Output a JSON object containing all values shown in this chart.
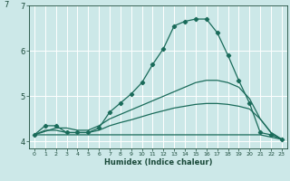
{
  "xlabel": "Humidex (Indice chaleur)",
  "bg_color": "#cce8e8",
  "grid_color": "#ffffff",
  "line_color": "#1a6b5a",
  "xlim": [
    -0.5,
    23.5
  ],
  "ylim": [
    3.85,
    7.0
  ],
  "yticks": [
    4,
    5,
    6,
    7
  ],
  "xticks": [
    0,
    1,
    2,
    3,
    4,
    5,
    6,
    7,
    8,
    9,
    10,
    11,
    12,
    13,
    14,
    15,
    16,
    17,
    18,
    19,
    20,
    21,
    22,
    23
  ],
  "line1_x": [
    0,
    1,
    2,
    3,
    4,
    5,
    6,
    7,
    8,
    9,
    10,
    11,
    12,
    13,
    14,
    15,
    16,
    17,
    18,
    19,
    20,
    21,
    22,
    23
  ],
  "line1_y": [
    4.15,
    4.35,
    4.35,
    4.2,
    4.2,
    4.2,
    4.3,
    4.65,
    4.85,
    5.05,
    5.3,
    5.7,
    6.05,
    6.55,
    6.65,
    6.7,
    6.7,
    6.4,
    5.9,
    5.35,
    4.85,
    4.2,
    4.15,
    4.05
  ],
  "line2_x": [
    0,
    2,
    3,
    4,
    5,
    6,
    7,
    8,
    9,
    10,
    11,
    12,
    13,
    14,
    15,
    16,
    17,
    18,
    19,
    20,
    21,
    22,
    23
  ],
  "line2_y": [
    4.15,
    4.3,
    4.3,
    4.25,
    4.25,
    4.35,
    4.5,
    4.6,
    4.7,
    4.8,
    4.9,
    5.0,
    5.1,
    5.2,
    5.3,
    5.35,
    5.35,
    5.3,
    5.2,
    4.95,
    4.5,
    4.2,
    4.05
  ],
  "line3_x": [
    0,
    1,
    2,
    3,
    4,
    5,
    6,
    7,
    8,
    9,
    10,
    11,
    12,
    13,
    14,
    15,
    16,
    17,
    18,
    19,
    20,
    21,
    22,
    23
  ],
  "line3_y": [
    4.15,
    4.25,
    4.25,
    4.2,
    4.2,
    4.2,
    4.25,
    4.35,
    4.42,
    4.48,
    4.55,
    4.62,
    4.68,
    4.74,
    4.78,
    4.82,
    4.84,
    4.84,
    4.82,
    4.78,
    4.72,
    4.5,
    4.2,
    4.05
  ],
  "line4_x": [
    0,
    1,
    2,
    3,
    4,
    5,
    6,
    7,
    8,
    9,
    10,
    11,
    12,
    13,
    14,
    15,
    16,
    17,
    18,
    19,
    20,
    21,
    22,
    23
  ],
  "line4_y": [
    4.15,
    4.15,
    4.15,
    4.15,
    4.15,
    4.15,
    4.15,
    4.15,
    4.15,
    4.15,
    4.15,
    4.15,
    4.15,
    4.15,
    4.15,
    4.15,
    4.15,
    4.15,
    4.15,
    4.15,
    4.15,
    4.15,
    4.1,
    4.05
  ]
}
